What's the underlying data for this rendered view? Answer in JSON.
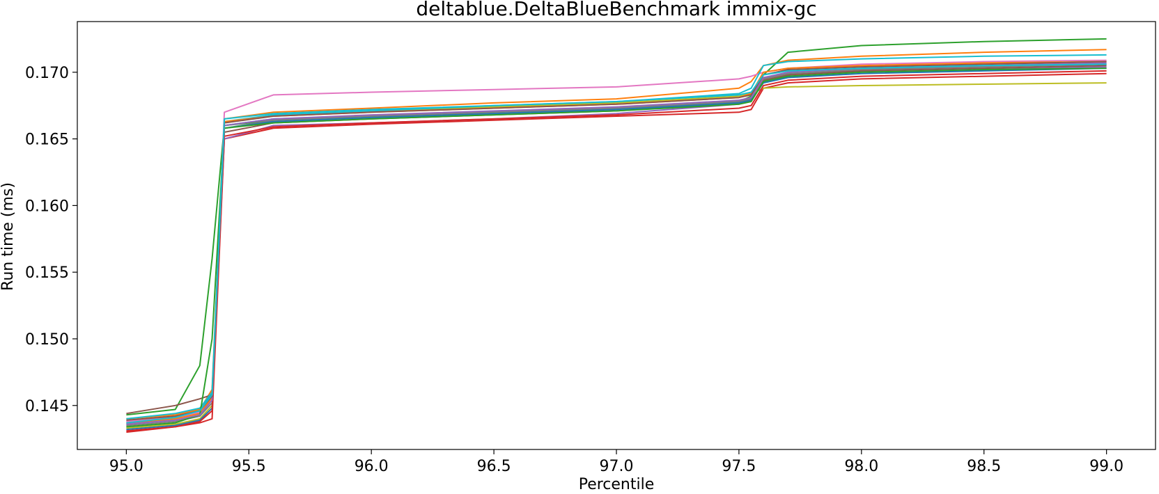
{
  "chart_data": {
    "type": "line",
    "title": "deltablue.DeltaBlueBenchmark immix-gc",
    "xlabel": "Percentile",
    "ylabel": "Run time (ms)",
    "xlim": [
      94.8,
      99.2
    ],
    "ylim": [
      0.1417,
      0.1738
    ],
    "x_ticks": [
      95.0,
      95.5,
      96.0,
      96.5,
      97.0,
      97.5,
      98.0,
      98.5,
      99.0
    ],
    "x_tick_labels": [
      "95.0",
      "95.5",
      "96.0",
      "96.5",
      "97.0",
      "97.5",
      "98.0",
      "98.5",
      "99.0"
    ],
    "y_ticks": [
      0.145,
      0.15,
      0.155,
      0.16,
      0.165,
      0.17
    ],
    "y_tick_labels": [
      "0.145",
      "0.150",
      "0.155",
      "0.160",
      "0.165",
      "0.170"
    ],
    "grid": false,
    "legend": "none",
    "x": [
      95.0,
      95.2,
      95.3,
      95.35,
      95.4,
      95.6,
      96.0,
      96.5,
      97.0,
      97.5,
      97.55,
      97.6,
      97.7,
      98.0,
      98.5,
      99.0
    ],
    "series": [
      {
        "color": "#1f77b4",
        "values": [
          0.1436,
          0.144,
          0.1445,
          0.146,
          0.166,
          0.1665,
          0.1667,
          0.167,
          0.1673,
          0.1678,
          0.1681,
          0.1696,
          0.1699,
          0.1702,
          0.1704,
          0.1706
        ]
      },
      {
        "color": "#ff7f0e",
        "values": [
          0.144,
          0.1443,
          0.1447,
          0.1462,
          0.1665,
          0.167,
          0.1673,
          0.1677,
          0.168,
          0.1688,
          0.1693,
          0.1705,
          0.1709,
          0.1712,
          0.1715,
          0.1717
        ]
      },
      {
        "color": "#2ca02c",
        "values": [
          0.1443,
          0.1447,
          0.148,
          0.156,
          0.166,
          0.1664,
          0.1667,
          0.167,
          0.1673,
          0.1678,
          0.1682,
          0.1698,
          0.1715,
          0.172,
          0.1723,
          0.1725
        ]
      },
      {
        "color": "#d62728",
        "values": [
          0.143,
          0.1434,
          0.1437,
          0.144,
          0.165,
          0.1658,
          0.1661,
          0.1664,
          0.1667,
          0.167,
          0.1672,
          0.1688,
          0.1692,
          0.1695,
          0.1697,
          0.1699
        ]
      },
      {
        "color": "#9467bd",
        "values": [
          0.1438,
          0.1441,
          0.1444,
          0.1458,
          0.165,
          0.166,
          0.1662,
          0.1665,
          0.1669,
          0.1676,
          0.1679,
          0.1693,
          0.1697,
          0.17,
          0.1702,
          0.1704
        ]
      },
      {
        "color": "#8c564b",
        "values": [
          0.1444,
          0.145,
          0.1455,
          0.1458,
          0.1655,
          0.1662,
          0.1665,
          0.1668,
          0.1671,
          0.1677,
          0.168,
          0.1694,
          0.1698,
          0.1701,
          0.1703,
          0.1705
        ]
      },
      {
        "color": "#e377c2",
        "values": [
          0.1438,
          0.1441,
          0.1445,
          0.1455,
          0.167,
          0.1683,
          0.1685,
          0.1687,
          0.1689,
          0.1695,
          0.1697,
          0.17,
          0.1703,
          0.1706,
          0.1708,
          0.1709
        ]
      },
      {
        "color": "#7f7f7f",
        "values": [
          0.1435,
          0.1438,
          0.1442,
          0.1452,
          0.1658,
          0.1664,
          0.1667,
          0.167,
          0.1673,
          0.1678,
          0.168,
          0.1695,
          0.1699,
          0.1702,
          0.1704,
          0.1706
        ]
      },
      {
        "color": "#bcbd22",
        "values": [
          0.1433,
          0.1436,
          0.144,
          0.145,
          0.1662,
          0.1668,
          0.1671,
          0.1674,
          0.1677,
          0.1682,
          0.1684,
          0.1688,
          0.1689,
          0.169,
          0.1691,
          0.1692
        ]
      },
      {
        "color": "#17becf",
        "values": [
          0.144,
          0.1444,
          0.1448,
          0.146,
          0.1663,
          0.1668,
          0.1671,
          0.1675,
          0.1678,
          0.1684,
          0.1688,
          0.1705,
          0.1708,
          0.171,
          0.1712,
          0.1713
        ]
      },
      {
        "color": "#1f77b4",
        "values": [
          0.1432,
          0.1435,
          0.1439,
          0.1448,
          0.1658,
          0.1663,
          0.1666,
          0.1669,
          0.1672,
          0.1677,
          0.1679,
          0.1692,
          0.1696,
          0.1699,
          0.1701,
          0.1703
        ]
      },
      {
        "color": "#ff7f0e",
        "values": [
          0.1437,
          0.144,
          0.1444,
          0.1456,
          0.1663,
          0.1667,
          0.167,
          0.1673,
          0.1676,
          0.1681,
          0.1684,
          0.17,
          0.1703,
          0.1705,
          0.1707,
          0.1708
        ]
      },
      {
        "color": "#2ca02c",
        "values": [
          0.1434,
          0.1437,
          0.1443,
          0.15,
          0.1658,
          0.1662,
          0.1665,
          0.1668,
          0.1671,
          0.1676,
          0.1678,
          0.1693,
          0.1697,
          0.17,
          0.1702,
          0.1703
        ]
      },
      {
        "color": "#d62728",
        "values": [
          0.1431,
          0.1434,
          0.1438,
          0.1446,
          0.1652,
          0.1659,
          0.1662,
          0.1665,
          0.1668,
          0.1673,
          0.1675,
          0.169,
          0.1694,
          0.1697,
          0.1699,
          0.1701
        ]
      },
      {
        "color": "#9467bd",
        "values": [
          0.1436,
          0.1439,
          0.1443,
          0.1454,
          0.166,
          0.1665,
          0.1668,
          0.1671,
          0.1674,
          0.1679,
          0.1681,
          0.1696,
          0.17,
          0.1703,
          0.1705,
          0.1707
        ]
      },
      {
        "color": "#8c564b",
        "values": [
          0.1439,
          0.1442,
          0.1446,
          0.1457,
          0.1662,
          0.1667,
          0.167,
          0.1673,
          0.1676,
          0.1681,
          0.1683,
          0.1698,
          0.1702,
          0.1704,
          0.1706,
          0.1708
        ]
      },
      {
        "color": "#17becf",
        "values": [
          0.1437,
          0.1441,
          0.1446,
          0.1458,
          0.1665,
          0.1669,
          0.1672,
          0.1675,
          0.1678,
          0.1683,
          0.1685,
          0.1698,
          0.1701,
          0.1703,
          0.1705,
          0.1706
        ]
      }
    ]
  }
}
